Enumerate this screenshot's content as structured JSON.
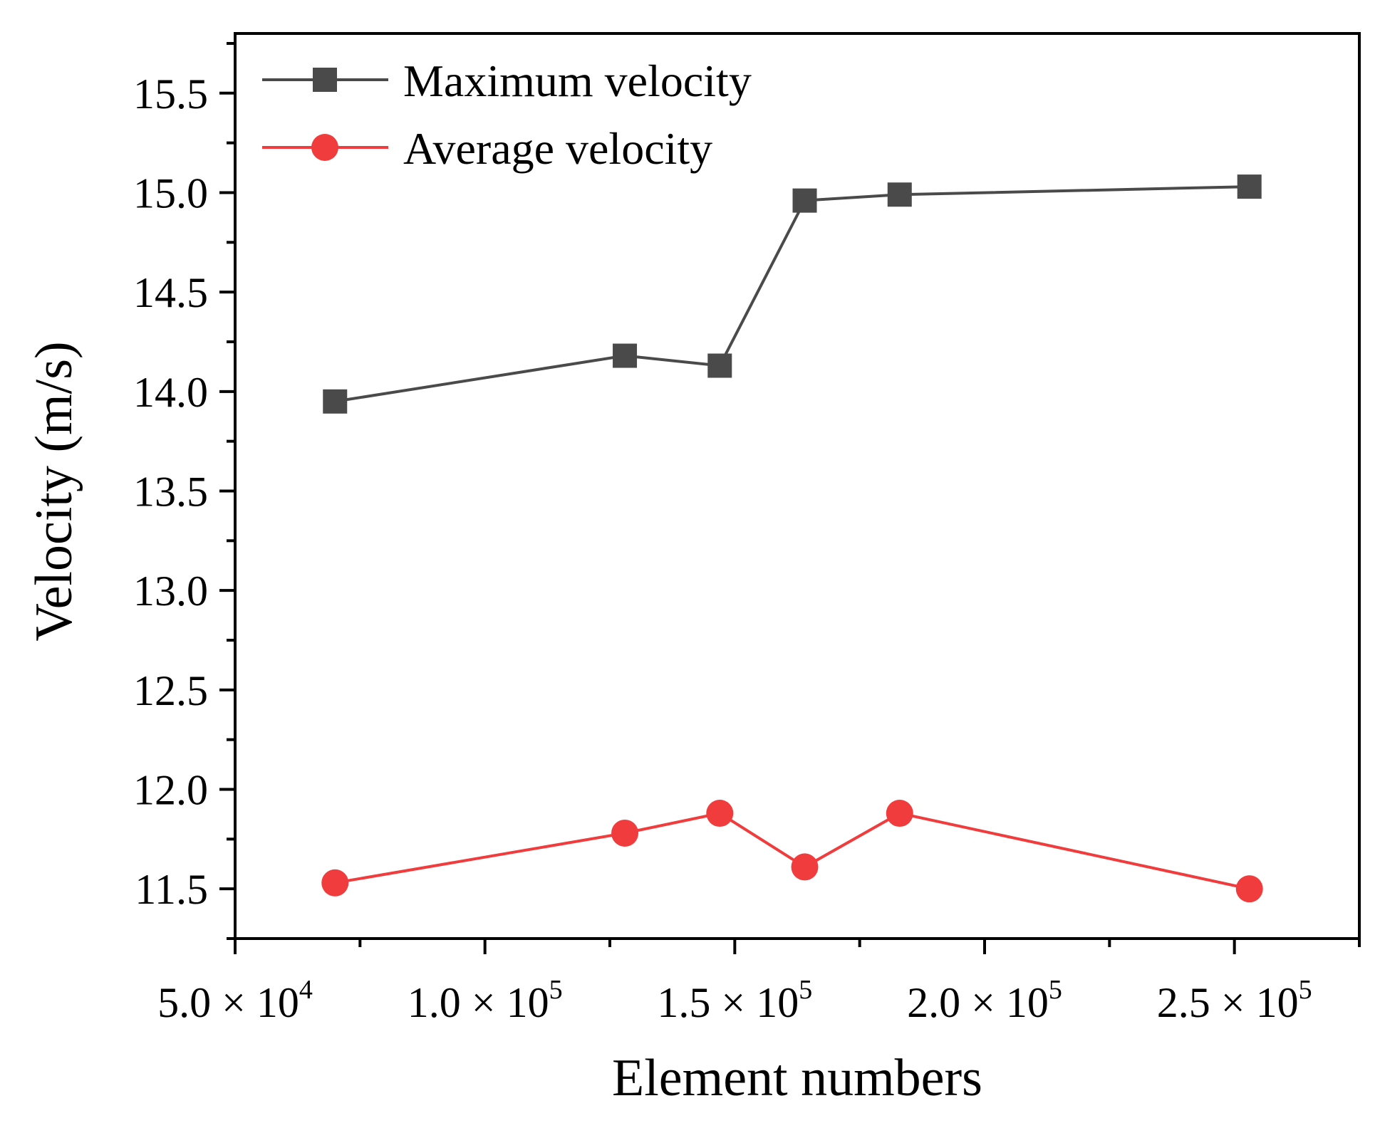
{
  "chart_data": {
    "type": "line",
    "xlabel": "Element numbers",
    "ylabel": "Velocity (m/s)",
    "xlim": [
      50000,
      275000
    ],
    "ylim": [
      11.25,
      15.8
    ],
    "x_ticks": [
      {
        "value": 50000,
        "mantissa": "5.0",
        "times": "×",
        "base": "10",
        "exponent": "4"
      },
      {
        "value": 100000,
        "mantissa": "1.0",
        "times": "×",
        "base": "10",
        "exponent": "5"
      },
      {
        "value": 150000,
        "mantissa": "1.5",
        "times": "×",
        "base": "10",
        "exponent": "5"
      },
      {
        "value": 200000,
        "mantissa": "2.0",
        "times": "×",
        "base": "10",
        "exponent": "5"
      },
      {
        "value": 250000,
        "mantissa": "2.5",
        "times": "×",
        "base": "10",
        "exponent": "5"
      }
    ],
    "y_ticks": [
      {
        "value": 11.5,
        "label": "11.5"
      },
      {
        "value": 12.0,
        "label": "12.0"
      },
      {
        "value": 12.5,
        "label": "12.5"
      },
      {
        "value": 13.0,
        "label": "13.0"
      },
      {
        "value": 13.5,
        "label": "13.5"
      },
      {
        "value": 14.0,
        "label": "14.0"
      },
      {
        "value": 14.5,
        "label": "14.5"
      },
      {
        "value": 15.0,
        "label": "15.0"
      },
      {
        "value": 15.5,
        "label": "15.5"
      }
    ],
    "x": [
      70000,
      128000,
      147000,
      164000,
      183000,
      253000
    ],
    "series": [
      {
        "name": "Maximum velocity",
        "color": "#4a4a4a",
        "marker": "square",
        "values": [
          13.95,
          14.18,
          14.13,
          14.96,
          14.99,
          15.03
        ]
      },
      {
        "name": "Average velocity",
        "color": "#f03c3c",
        "marker": "circle",
        "values": [
          11.53,
          11.78,
          11.88,
          11.61,
          11.88,
          11.5
        ]
      }
    ],
    "legend": "top-left",
    "grid": false
  }
}
